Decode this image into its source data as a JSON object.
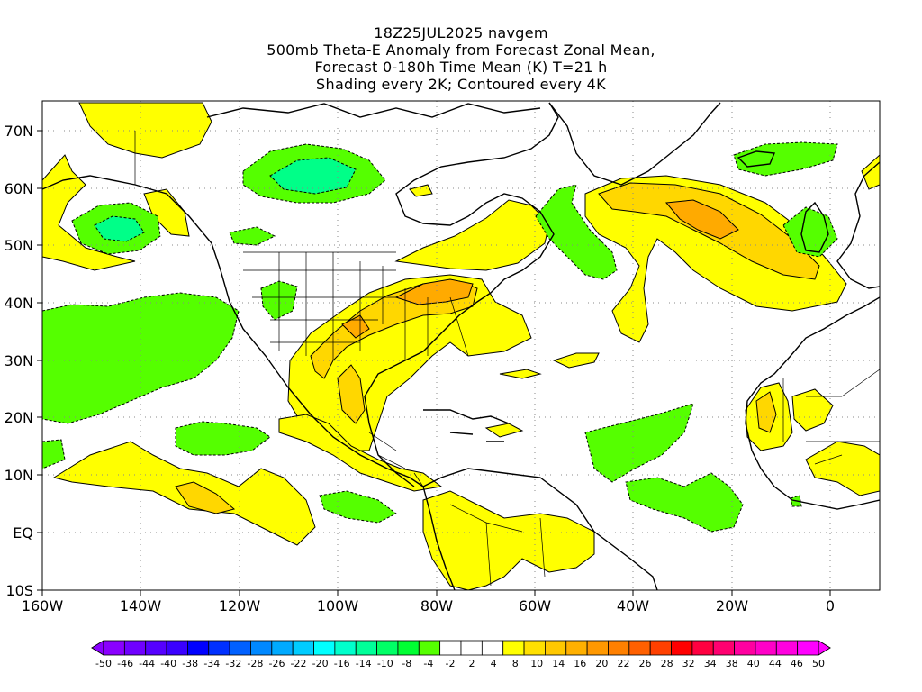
{
  "title": {
    "line1": "18Z25JUL2025 navgem",
    "line2": "500mb Theta-E Anomaly from Forecast Zonal Mean,",
    "line3": "Forecast 0-180h Time Mean (K) T=21 h",
    "line4": "Shading every 2K; Contoured every 4K"
  },
  "map": {
    "lon_range": [
      -160,
      10
    ],
    "lat_range": [
      -10,
      75
    ],
    "grid": "dotted",
    "lat_ticks": [
      "70N",
      "60N",
      "50N",
      "40N",
      "30N",
      "20N",
      "10N",
      "EQ",
      "10S"
    ],
    "lon_ticks": [
      "160W",
      "140W",
      "120W",
      "100W",
      "80W",
      "60W",
      "40W",
      "20W",
      "0"
    ]
  },
  "colors": {
    "pos_4_8": "#ffff00",
    "pos_8_12": "#ffd700",
    "pos_12_16": "#ffaa00",
    "neg_4_8": "#55ff00",
    "neg_8_12": "#00ff88",
    "neg_12_16": "#00dd99"
  },
  "colorbar": {
    "labels": [
      "-50",
      "-46",
      "-44",
      "-40",
      "-38",
      "-34",
      "-32",
      "-28",
      "-26",
      "-22",
      "-20",
      "-16",
      "-14",
      "-10",
      "-8",
      "-4",
      "-2",
      "2",
      "4",
      "8",
      "10",
      "14",
      "16",
      "20",
      "22",
      "26",
      "28",
      "32",
      "34",
      "38",
      "40",
      "44",
      "46",
      "50"
    ],
    "colors": [
      "#8a00ff",
      "#6f00ff",
      "#5500ff",
      "#3a00ff",
      "#0000ff",
      "#0030ff",
      "#0060ff",
      "#0088ff",
      "#00aaff",
      "#00ccff",
      "#00ffff",
      "#00ffcc",
      "#00ff99",
      "#00ff66",
      "#00ff33",
      "#55ff00",
      "#ffffff",
      "#ffffff",
      "#ffffff",
      "#ffff00",
      "#ffe000",
      "#ffc800",
      "#ffb000",
      "#ff9800",
      "#ff8000",
      "#ff6000",
      "#ff4000",
      "#ff0000",
      "#ff0040",
      "#ff0070",
      "#ff00a0",
      "#ff00c8",
      "#ff00e0",
      "#ff00ff"
    ],
    "left_arrow_color": "#8a00ff",
    "right_arrow_color": "#ff00ff"
  }
}
